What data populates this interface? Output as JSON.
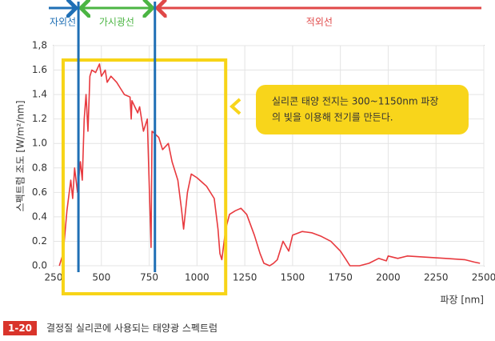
{
  "chart_data": {
    "type": "line",
    "y_label": "스펙트럼 조도 [W/m²/nm]",
    "x_label": "파장 [nm]",
    "xlim": [
      250,
      2500
    ],
    "xticks": [
      250,
      500,
      750,
      1000,
      1250,
      1500,
      1750,
      2000,
      2250,
      2500
    ],
    "ylim": [
      0,
      1.8
    ],
    "yticks": [
      {
        "value": 0,
        "label": "0.0"
      },
      0.2,
      0.4,
      0.6,
      0.8,
      {
        "value": 1,
        "label": "1.0"
      },
      1.2,
      1.4,
      1.6,
      {
        "value": 1.8,
        "label": "1,8"
      }
    ],
    "grid": true,
    "color": "#e8393e",
    "x": [
      280,
      300,
      320,
      340,
      350,
      360,
      375,
      390,
      400,
      410,
      420,
      430,
      440,
      450,
      470,
      490,
      500,
      520,
      530,
      550,
      580,
      600,
      620,
      650,
      656,
      660,
      690,
      700,
      720,
      740,
      760,
      765,
      800,
      820,
      850,
      870,
      900,
      920,
      930,
      950,
      970,
      1000,
      1050,
      1090,
      1110,
      1120,
      1130,
      1150,
      1170,
      1200,
      1230,
      1260,
      1300,
      1330,
      1350,
      1380,
      1400,
      1420,
      1450,
      1480,
      1500,
      1550,
      1600,
      1650,
      1700,
      1750,
      1780,
      1800,
      1850,
      1900,
      1950,
      1990,
      2000,
      2050,
      2100,
      2200,
      2300,
      2400,
      2450,
      2480
    ],
    "values": [
      0,
      0.1,
      0.45,
      0.7,
      0.55,
      0.8,
      0.6,
      0.85,
      0.7,
      1.2,
      1.4,
      1.1,
      1.55,
      1.6,
      1.58,
      1.65,
      1.55,
      1.6,
      1.5,
      1.55,
      1.5,
      1.45,
      1.4,
      1.38,
      1.2,
      1.35,
      1.25,
      1.3,
      1.1,
      1.2,
      0.15,
      1.1,
      1.05,
      0.95,
      1.0,
      0.85,
      0.7,
      0.45,
      0.3,
      0.6,
      0.75,
      0.72,
      0.65,
      0.55,
      0.3,
      0.1,
      0.05,
      0.3,
      0.42,
      0.45,
      0.47,
      0.42,
      0.25,
      0.1,
      0.02,
      0,
      0.02,
      0.05,
      0.2,
      0.12,
      0.25,
      0.28,
      0.27,
      0.24,
      0.2,
      0.12,
      0.05,
      0,
      0,
      0.02,
      0.06,
      0.04,
      0.08,
      0.06,
      0.08,
      0.07,
      0.06,
      0.05,
      0.03,
      0.02
    ],
    "regions": [
      {
        "name": "자외선",
        "color": "#1f6fb5",
        "range": [
          250,
          380
        ]
      },
      {
        "name": "가시광선",
        "color": "#4bb543",
        "range": [
          380,
          780
        ]
      },
      {
        "name": "적외선",
        "color": "#e04848",
        "range": [
          780,
          2500
        ]
      }
    ],
    "highlight_range": [
      300,
      1150
    ],
    "annotation": [
      "실리콘 태양 전지는 300~1150nm 파장",
      "의 빛을 이용해 전기를 만든다."
    ],
    "figure_number": "1-20",
    "caption": "결정질 실리콘에 사용되는 태양광 스펙트럼"
  }
}
